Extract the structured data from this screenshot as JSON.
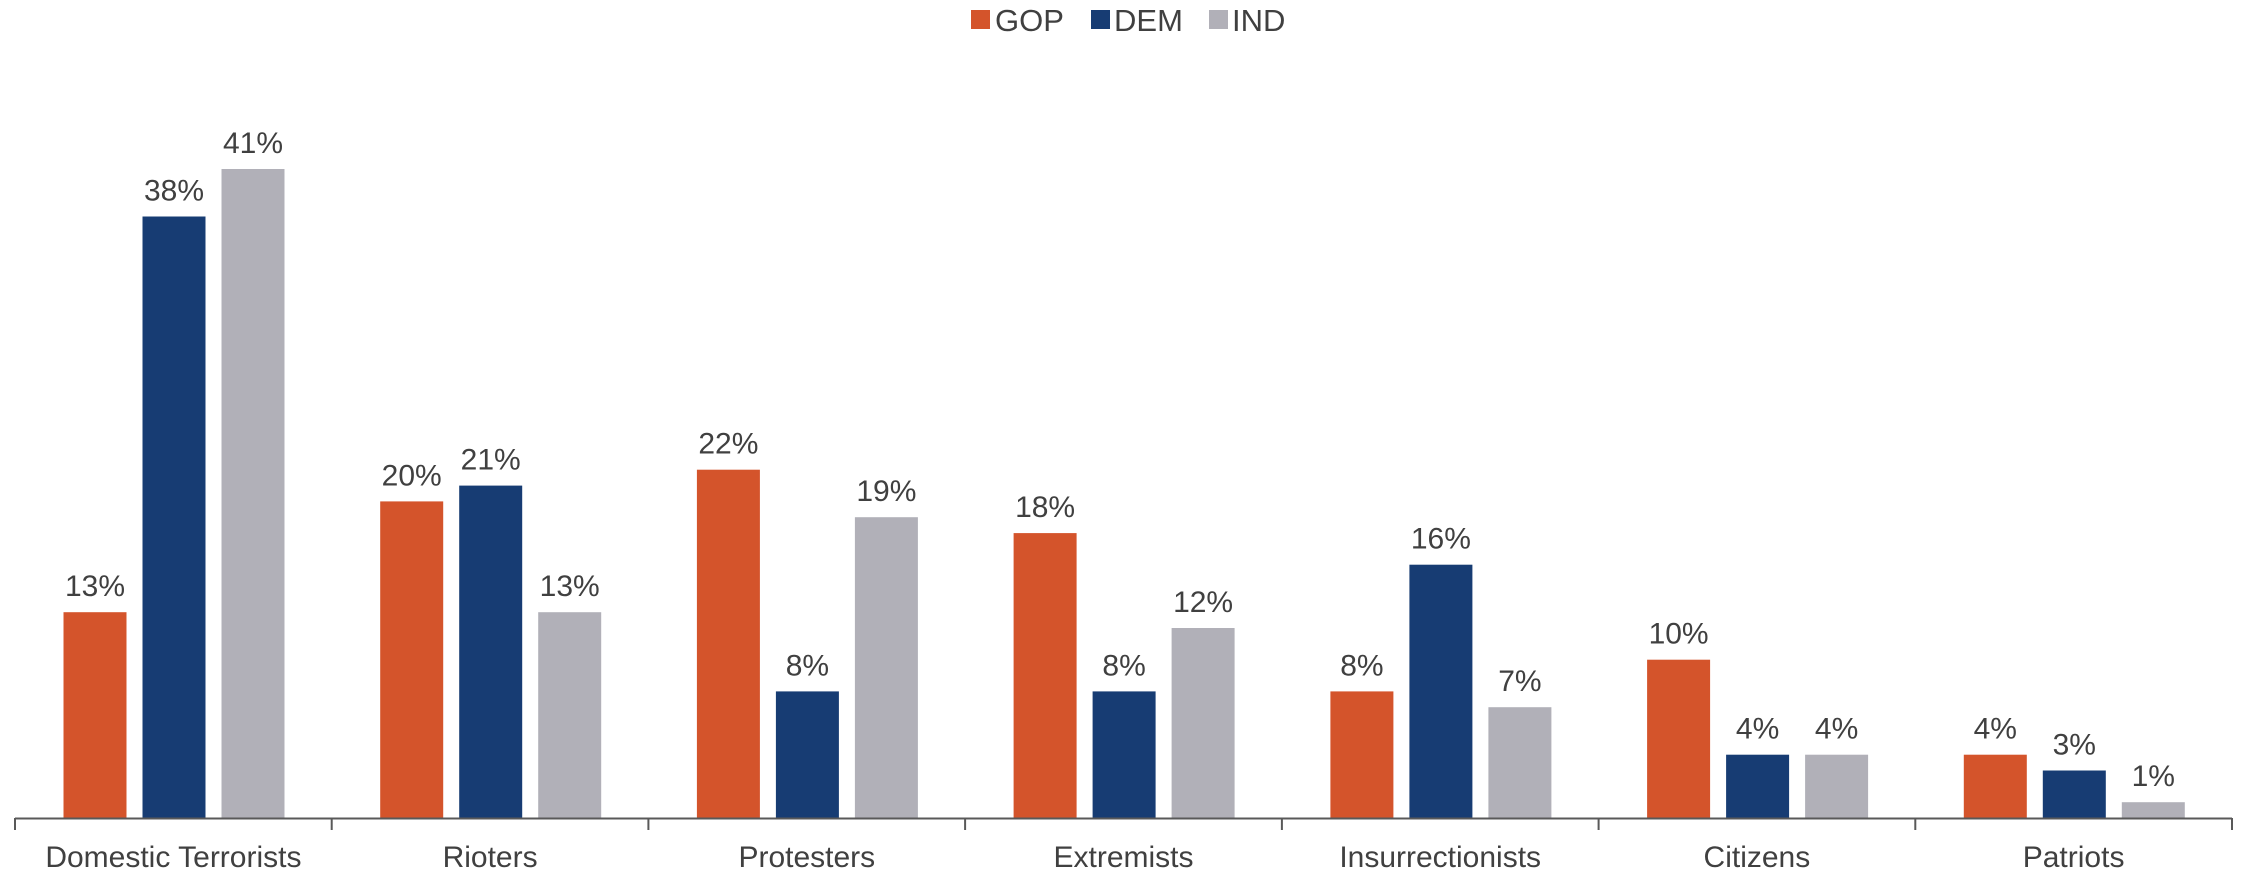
{
  "chart_data": {
    "type": "bar",
    "title": "",
    "xlabel": "",
    "ylabel": "",
    "ylim": [
      0,
      41
    ],
    "grid": false,
    "legend_position": "top-center",
    "categories": [
      "Domestic Terrorists",
      "Rioters",
      "Protesters",
      "Extremists",
      "Insurrectionists",
      "Citizens",
      "Patriots"
    ],
    "series": [
      {
        "name": "GOP",
        "color": "#D4542B",
        "values": [
          13,
          20,
          22,
          18,
          8,
          10,
          4
        ],
        "labels": [
          "13%",
          "20%",
          "22%",
          "18%",
          "8%",
          "10%",
          "4%"
        ]
      },
      {
        "name": "DEM",
        "color": "#173C73",
        "values": [
          38,
          21,
          8,
          8,
          16,
          4,
          3
        ],
        "labels": [
          "38%",
          "21%",
          "8%",
          "8%",
          "16%",
          "4%",
          "3%"
        ]
      },
      {
        "name": "IND",
        "color": "#B1B0B8",
        "values": [
          41,
          13,
          19,
          12,
          7,
          4,
          1
        ],
        "labels": [
          "41%",
          "13%",
          "19%",
          "12%",
          "7%",
          "4%",
          "1%"
        ]
      }
    ]
  }
}
